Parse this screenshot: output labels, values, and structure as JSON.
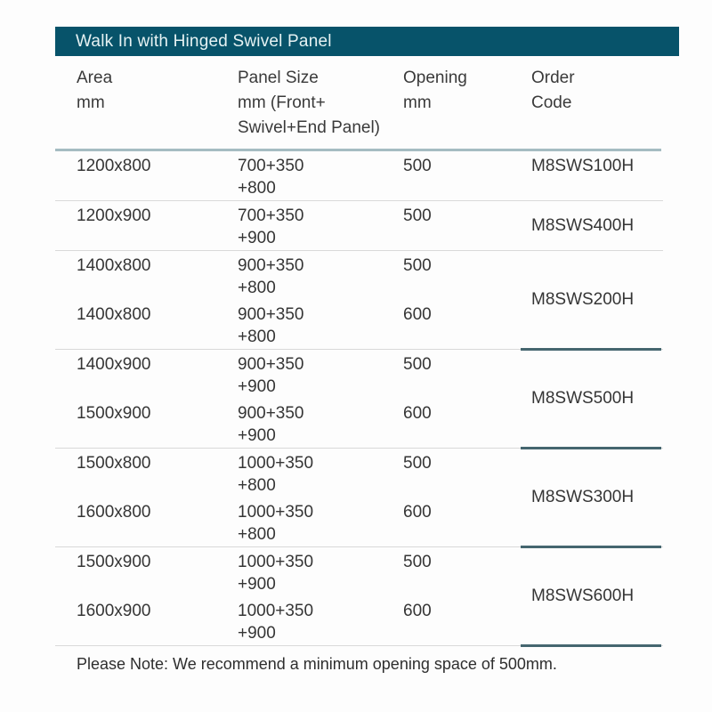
{
  "header_bar": {
    "title": "Walk In with Hinged Swivel Panel"
  },
  "columns": [
    {
      "label_lines": [
        "Area",
        "mm"
      ]
    },
    {
      "label_lines": [
        "Panel Size",
        "mm (Front+",
        "Swivel+End Panel)"
      ]
    },
    {
      "label_lines": [
        "Opening",
        "mm"
      ]
    },
    {
      "label_lines": [
        "Order",
        "Code"
      ]
    }
  ],
  "table": {
    "groups": [
      {
        "order_code": "M8SWS100H",
        "rows": [
          {
            "area": "1200x800",
            "panel_lines": [
              "700+350",
              "+800"
            ],
            "opening": "500"
          }
        ]
      },
      {
        "order_code": "M8SWS400H",
        "rows": [
          {
            "area": "1200x900",
            "panel_lines": [
              "700+350",
              "+900"
            ],
            "opening": "500"
          }
        ]
      },
      {
        "order_code": "M8SWS200H",
        "rows": [
          {
            "area": "1400x800",
            "panel_lines": [
              "900+350",
              "+800"
            ],
            "opening": "500"
          },
          {
            "area": "1400x800",
            "panel_lines": [
              "900+350",
              "+800"
            ],
            "opening": "600"
          }
        ]
      },
      {
        "order_code": "M8SWS500H",
        "rows": [
          {
            "area": "1400x900",
            "panel_lines": [
              "900+350",
              "+900"
            ],
            "opening": "500"
          },
          {
            "area": "1500x900",
            "panel_lines": [
              "900+350",
              "+900"
            ],
            "opening": "600"
          }
        ]
      },
      {
        "order_code": "M8SWS300H",
        "rows": [
          {
            "area": "1500x800",
            "panel_lines": [
              "1000+350",
              "+800"
            ],
            "opening": "500"
          },
          {
            "area": "1600x800",
            "panel_lines": [
              "1000+350",
              "+800"
            ],
            "opening": "600"
          }
        ]
      },
      {
        "order_code": "M8SWS600H",
        "rows": [
          {
            "area": "1500x900",
            "panel_lines": [
              "1000+350",
              "+900"
            ],
            "opening": "500"
          },
          {
            "area": "1600x900",
            "panel_lines": [
              "1000+350",
              "+900"
            ],
            "opening": "600"
          }
        ]
      }
    ]
  },
  "note": {
    "text": "Please Note: We recommend a minimum opening space of 500mm."
  },
  "colors": {
    "accent_teal": "#07536a",
    "bar_text": "#e6f2f3",
    "header_rule": "#a5bcc2",
    "row_rule": "#d9d9d9",
    "code_underline": "#45666f",
    "text": "#353535",
    "background": "#fdfdfd"
  }
}
